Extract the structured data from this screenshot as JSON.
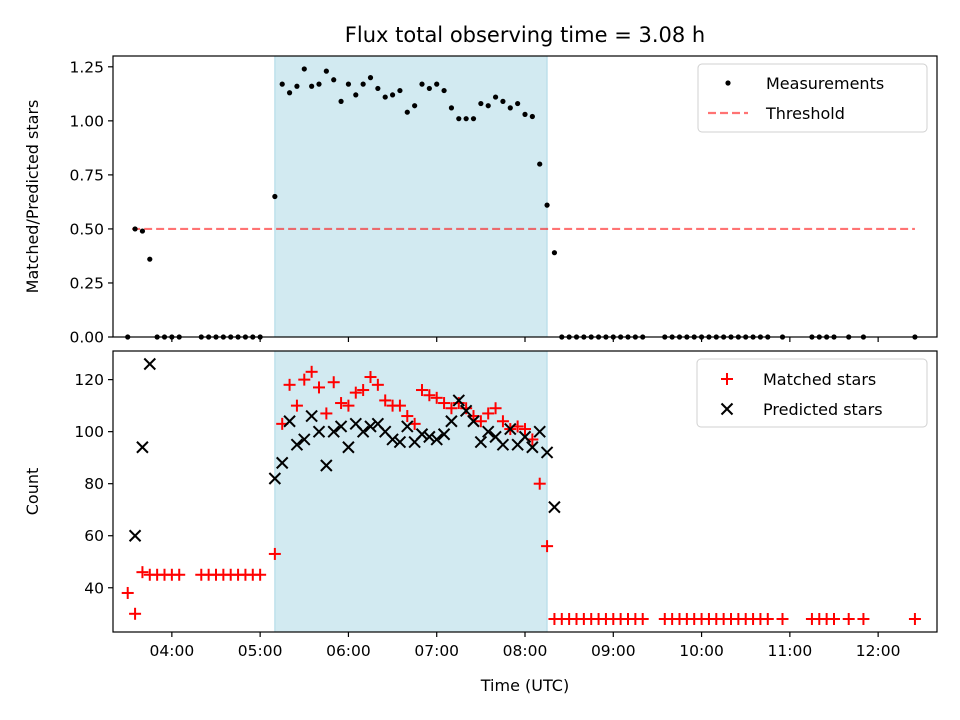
{
  "title": "Flux total observing time = 3.08 h",
  "colors": {
    "band": "#add8e6",
    "measurements": "#000000",
    "threshold": "#ff0000",
    "matched": "#ff0000",
    "predicted": "#000000"
  },
  "chart_data": [
    {
      "type": "scatter",
      "panel": "top",
      "ylabel": "Matched/Predicted stars",
      "xlim": [
        "03:20",
        "12:40"
      ],
      "ylim": [
        0,
        1.3
      ],
      "yticks": [
        0,
        0.25,
        0.5,
        0.75,
        1.0,
        1.25
      ],
      "ytick_labels": [
        "0.00",
        "0.25",
        "0.50",
        "0.75",
        "1.00",
        "1.25"
      ],
      "xticks": [
        "04:00",
        "05:00",
        "06:00",
        "07:00",
        "08:00",
        "09:00",
        "10:00",
        "11:00",
        "12:00"
      ],
      "shaded_span": [
        "05:10",
        "08:15"
      ],
      "legend_position": "top-right",
      "legend": [
        "Measurements",
        "Threshold"
      ],
      "threshold": {
        "name": "Threshold",
        "value": 0.5,
        "x_range": [
          "03:33",
          "12:25"
        ],
        "style": "dashed"
      },
      "series": [
        {
          "name": "Measurements",
          "marker": "dot",
          "points": [
            [
              "03:30",
              0
            ],
            [
              "03:35",
              0.5
            ],
            [
              "03:40",
              0.49
            ],
            [
              "03:45",
              0.36
            ],
            [
              "03:50",
              0
            ],
            [
              "03:55",
              0
            ],
            [
              "04:00",
              0
            ],
            [
              "04:05",
              0
            ],
            [
              "04:20",
              0
            ],
            [
              "04:25",
              0
            ],
            [
              "04:30",
              0
            ],
            [
              "04:35",
              0
            ],
            [
              "04:40",
              0
            ],
            [
              "04:45",
              0
            ],
            [
              "04:50",
              0
            ],
            [
              "04:55",
              0
            ],
            [
              "05:00",
              0
            ],
            [
              "05:10",
              0.65
            ],
            [
              "05:15",
              1.17
            ],
            [
              "05:20",
              1.13
            ],
            [
              "05:25",
              1.16
            ],
            [
              "05:30",
              1.24
            ],
            [
              "05:35",
              1.16
            ],
            [
              "05:40",
              1.17
            ],
            [
              "05:45",
              1.23
            ],
            [
              "05:50",
              1.19
            ],
            [
              "05:55",
              1.09
            ],
            [
              "06:00",
              1.17
            ],
            [
              "06:05",
              1.12
            ],
            [
              "06:10",
              1.17
            ],
            [
              "06:15",
              1.2
            ],
            [
              "06:20",
              1.15
            ],
            [
              "06:25",
              1.11
            ],
            [
              "06:30",
              1.12
            ],
            [
              "06:35",
              1.14
            ],
            [
              "06:40",
              1.04
            ],
            [
              "06:45",
              1.07
            ],
            [
              "06:50",
              1.17
            ],
            [
              "06:55",
              1.15
            ],
            [
              "07:00",
              1.17
            ],
            [
              "07:05",
              1.14
            ],
            [
              "07:10",
              1.06
            ],
            [
              "07:15",
              1.01
            ],
            [
              "07:20",
              1.01
            ],
            [
              "07:25",
              1.01
            ],
            [
              "07:30",
              1.08
            ],
            [
              "07:35",
              1.07
            ],
            [
              "07:40",
              1.11
            ],
            [
              "07:45",
              1.09
            ],
            [
              "07:50",
              1.06
            ],
            [
              "07:55",
              1.08
            ],
            [
              "08:00",
              1.03
            ],
            [
              "08:05",
              1.02
            ],
            [
              "08:10",
              0.8
            ],
            [
              "08:15",
              0.61
            ],
            [
              "08:20",
              0.39
            ],
            [
              "08:25",
              0
            ],
            [
              "08:30",
              0
            ],
            [
              "08:35",
              0
            ],
            [
              "08:40",
              0
            ],
            [
              "08:45",
              0
            ],
            [
              "08:50",
              0
            ],
            [
              "08:55",
              0
            ],
            [
              "09:00",
              0
            ],
            [
              "09:05",
              0
            ],
            [
              "09:10",
              0
            ],
            [
              "09:15",
              0
            ],
            [
              "09:20",
              0
            ],
            [
              "09:35",
              0
            ],
            [
              "09:40",
              0
            ],
            [
              "09:45",
              0
            ],
            [
              "09:50",
              0
            ],
            [
              "09:55",
              0
            ],
            [
              "10:00",
              0
            ],
            [
              "10:05",
              0
            ],
            [
              "10:10",
              0
            ],
            [
              "10:15",
              0
            ],
            [
              "10:20",
              0
            ],
            [
              "10:25",
              0
            ],
            [
              "10:30",
              0
            ],
            [
              "10:35",
              0
            ],
            [
              "10:40",
              0
            ],
            [
              "10:45",
              0
            ],
            [
              "10:55",
              0
            ],
            [
              "11:15",
              0
            ],
            [
              "11:20",
              0
            ],
            [
              "11:25",
              0
            ],
            [
              "11:30",
              0
            ],
            [
              "11:40",
              0
            ],
            [
              "11:50",
              0
            ],
            [
              "12:25",
              0
            ]
          ]
        }
      ]
    },
    {
      "type": "scatter",
      "panel": "bottom",
      "xlabel": "Time (UTC)",
      "ylabel": "Count",
      "xlim": [
        "03:20",
        "12:40"
      ],
      "ylim": [
        23,
        131
      ],
      "yticks": [
        40,
        60,
        80,
        100,
        120
      ],
      "ytick_labels": [
        "40",
        "60",
        "80",
        "100",
        "120"
      ],
      "xticks": [
        "04:00",
        "05:00",
        "06:00",
        "07:00",
        "08:00",
        "09:00",
        "10:00",
        "11:00",
        "12:00"
      ],
      "shaded_span": [
        "05:10",
        "08:15"
      ],
      "legend_position": "top-right",
      "legend": [
        "Matched stars",
        "Predicted stars"
      ],
      "series": [
        {
          "name": "Matched stars",
          "marker": "plus",
          "points": [
            [
              "03:30",
              38
            ],
            [
              "03:35",
              30
            ],
            [
              "03:40",
              46
            ],
            [
              "03:45",
              45
            ],
            [
              "03:50",
              45
            ],
            [
              "03:55",
              45
            ],
            [
              "04:00",
              45
            ],
            [
              "04:05",
              45
            ],
            [
              "04:20",
              45
            ],
            [
              "04:25",
              45
            ],
            [
              "04:30",
              45
            ],
            [
              "04:35",
              45
            ],
            [
              "04:40",
              45
            ],
            [
              "04:45",
              45
            ],
            [
              "04:50",
              45
            ],
            [
              "04:55",
              45
            ],
            [
              "05:00",
              45
            ],
            [
              "05:10",
              53
            ],
            [
              "05:15",
              103
            ],
            [
              "05:20",
              118
            ],
            [
              "05:25",
              110
            ],
            [
              "05:30",
              120
            ],
            [
              "05:35",
              123
            ],
            [
              "05:40",
              117
            ],
            [
              "05:45",
              107
            ],
            [
              "05:50",
              119
            ],
            [
              "05:55",
              111
            ],
            [
              "06:00",
              110
            ],
            [
              "06:05",
              115
            ],
            [
              "06:10",
              116
            ],
            [
              "06:15",
              121
            ],
            [
              "06:20",
              118
            ],
            [
              "06:25",
              112
            ],
            [
              "06:30",
              110
            ],
            [
              "06:35",
              110
            ],
            [
              "06:40",
              106
            ],
            [
              "06:45",
              103
            ],
            [
              "06:50",
              116
            ],
            [
              "06:55",
              114
            ],
            [
              "07:00",
              113
            ],
            [
              "07:05",
              111
            ],
            [
              "07:10",
              109
            ],
            [
              "07:15",
              111
            ],
            [
              "07:20",
              109
            ],
            [
              "07:25",
              106
            ],
            [
              "07:30",
              104
            ],
            [
              "07:35",
              107
            ],
            [
              "07:40",
              109
            ],
            [
              "07:45",
              104
            ],
            [
              "07:50",
              101
            ],
            [
              "07:55",
              102
            ],
            [
              "08:00",
              101
            ],
            [
              "08:05",
              97
            ],
            [
              "08:10",
              80
            ],
            [
              "08:15",
              56
            ],
            [
              "08:20",
              28
            ],
            [
              "08:25",
              28
            ],
            [
              "08:30",
              28
            ],
            [
              "08:35",
              28
            ],
            [
              "08:40",
              28
            ],
            [
              "08:45",
              28
            ],
            [
              "08:50",
              28
            ],
            [
              "08:55",
              28
            ],
            [
              "09:00",
              28
            ],
            [
              "09:05",
              28
            ],
            [
              "09:10",
              28
            ],
            [
              "09:15",
              28
            ],
            [
              "09:20",
              28
            ],
            [
              "09:35",
              28
            ],
            [
              "09:40",
              28
            ],
            [
              "09:45",
              28
            ],
            [
              "09:50",
              28
            ],
            [
              "09:55",
              28
            ],
            [
              "10:00",
              28
            ],
            [
              "10:05",
              28
            ],
            [
              "10:10",
              28
            ],
            [
              "10:15",
              28
            ],
            [
              "10:20",
              28
            ],
            [
              "10:25",
              28
            ],
            [
              "10:30",
              28
            ],
            [
              "10:35",
              28
            ],
            [
              "10:40",
              28
            ],
            [
              "10:45",
              28
            ],
            [
              "10:55",
              28
            ],
            [
              "11:15",
              28
            ],
            [
              "11:20",
              28
            ],
            [
              "11:25",
              28
            ],
            [
              "11:30",
              28
            ],
            [
              "11:40",
              28
            ],
            [
              "11:50",
              28
            ],
            [
              "12:25",
              28
            ]
          ]
        },
        {
          "name": "Predicted stars",
          "marker": "x",
          "points": [
            [
              "03:35",
              60
            ],
            [
              "03:40",
              94
            ],
            [
              "03:45",
              126
            ],
            [
              "05:10",
              82
            ],
            [
              "05:15",
              88
            ],
            [
              "05:20",
              104
            ],
            [
              "05:25",
              95
            ],
            [
              "05:30",
              97
            ],
            [
              "05:35",
              106
            ],
            [
              "05:40",
              100
            ],
            [
              "05:45",
              87
            ],
            [
              "05:50",
              100
            ],
            [
              "05:55",
              102
            ],
            [
              "06:00",
              94
            ],
            [
              "06:05",
              103
            ],
            [
              "06:10",
              100
            ],
            [
              "06:15",
              102
            ],
            [
              "06:20",
              103
            ],
            [
              "06:25",
              100
            ],
            [
              "06:30",
              97
            ],
            [
              "06:35",
              96
            ],
            [
              "06:40",
              102
            ],
            [
              "06:45",
              96
            ],
            [
              "06:50",
              99
            ],
            [
              "06:55",
              98
            ],
            [
              "07:00",
              97
            ],
            [
              "07:05",
              99
            ],
            [
              "07:10",
              104
            ],
            [
              "07:15",
              112
            ],
            [
              "07:20",
              108
            ],
            [
              "07:25",
              104
            ],
            [
              "07:30",
              96
            ],
            [
              "07:35",
              100
            ],
            [
              "07:40",
              98
            ],
            [
              "07:45",
              95
            ],
            [
              "07:50",
              101
            ],
            [
              "07:55",
              95
            ],
            [
              "08:00",
              98
            ],
            [
              "08:05",
              94
            ],
            [
              "08:10",
              100
            ],
            [
              "08:15",
              92
            ],
            [
              "08:20",
              71
            ]
          ]
        }
      ]
    }
  ]
}
